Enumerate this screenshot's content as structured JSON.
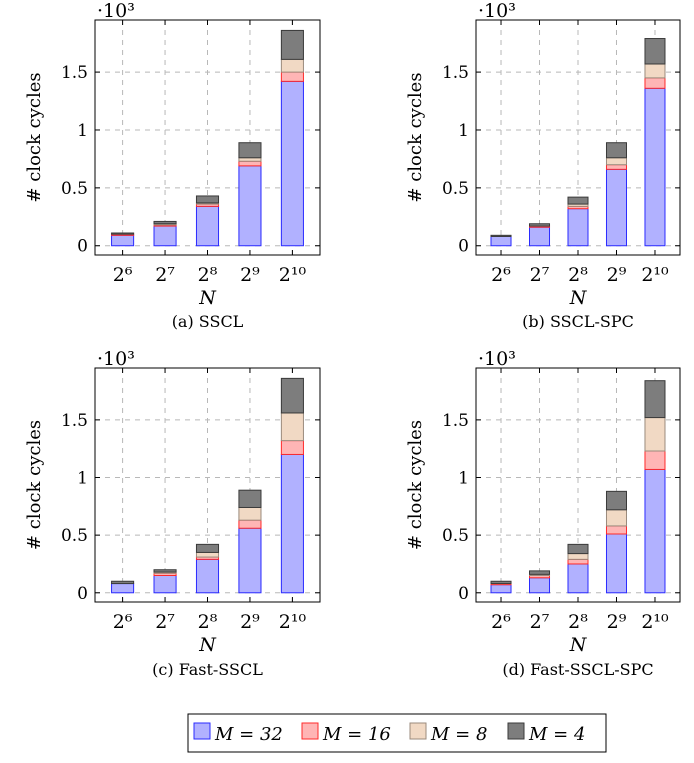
{
  "legend": {
    "items": [
      {
        "label": "M = 32",
        "color": "#b1b1ff",
        "stroke": "#2b2bff"
      },
      {
        "label": "M = 16",
        "color": "#ffb5b5",
        "stroke": "#ff2b2b"
      },
      {
        "label": "M = 8",
        "color": "#f1d9c4",
        "stroke": "#9b8b7d"
      },
      {
        "label": "M = 4",
        "color": "#7d7d7d",
        "stroke": "#3a3a3a"
      }
    ]
  },
  "chart_data": [
    {
      "type": "bar",
      "stacked": true,
      "caption": "(a) SSCL",
      "xlabel": "N",
      "ylabel": "# clock cycles",
      "scale_label": "·10³",
      "categories": [
        "2⁶",
        "2⁷",
        "2⁸",
        "2⁹",
        "2¹⁰"
      ],
      "ylim": [
        -0.08,
        1.95
      ],
      "yticks": [
        0,
        0.5,
        1,
        1.5
      ],
      "ytick_labels": [
        "0",
        "0.5",
        "1",
        "1.5"
      ],
      "grid": true,
      "series": [
        {
          "name": "M = 32",
          "values": [
            0.09,
            0.17,
            0.34,
            0.69,
            1.42
          ]
        },
        {
          "name": "M = 16",
          "values": [
            0.01,
            0.01,
            0.02,
            0.04,
            0.08
          ]
        },
        {
          "name": "M = 8",
          "values": [
            0.0,
            0.01,
            0.01,
            0.03,
            0.11
          ]
        },
        {
          "name": "M = 4",
          "values": [
            0.01,
            0.02,
            0.06,
            0.13,
            0.25
          ]
        }
      ]
    },
    {
      "type": "bar",
      "stacked": true,
      "caption": "(b) SSCL-SPC",
      "xlabel": "N",
      "ylabel": "# clock cycles",
      "scale_label": "·10³",
      "categories": [
        "2⁶",
        "2⁷",
        "2⁸",
        "2⁹",
        "2¹⁰"
      ],
      "ylim": [
        -0.08,
        1.95
      ],
      "yticks": [
        0,
        0.5,
        1,
        1.5
      ],
      "ytick_labels": [
        "0",
        "0.5",
        "1",
        "1.5"
      ],
      "grid": true,
      "series": [
        {
          "name": "M = 32",
          "values": [
            0.08,
            0.16,
            0.32,
            0.66,
            1.36
          ]
        },
        {
          "name": "M = 16",
          "values": [
            0.0,
            0.01,
            0.02,
            0.04,
            0.09
          ]
        },
        {
          "name": "M = 8",
          "values": [
            0.0,
            0.0,
            0.02,
            0.06,
            0.12
          ]
        },
        {
          "name": "M = 4",
          "values": [
            0.01,
            0.02,
            0.06,
            0.13,
            0.22
          ]
        }
      ]
    },
    {
      "type": "bar",
      "stacked": true,
      "caption": "(c) Fast-SSCL",
      "xlabel": "N",
      "ylabel": "# clock cycles",
      "scale_label": "·10³",
      "categories": [
        "2⁶",
        "2⁷",
        "2⁸",
        "2⁹",
        "2¹⁰"
      ],
      "ylim": [
        -0.08,
        1.95
      ],
      "yticks": [
        0,
        0.5,
        1,
        1.5
      ],
      "ytick_labels": [
        "0",
        "0.5",
        "1",
        "1.5"
      ],
      "grid": true,
      "series": [
        {
          "name": "M = 32",
          "values": [
            0.08,
            0.15,
            0.29,
            0.56,
            1.2
          ]
        },
        {
          "name": "M = 16",
          "values": [
            0.0,
            0.02,
            0.02,
            0.07,
            0.12
          ]
        },
        {
          "name": "M = 8",
          "values": [
            0.0,
            0.01,
            0.04,
            0.11,
            0.24
          ]
        },
        {
          "name": "M = 4",
          "values": [
            0.02,
            0.02,
            0.07,
            0.15,
            0.3
          ]
        }
      ]
    },
    {
      "type": "bar",
      "stacked": true,
      "caption": "(d) Fast-SSCL-SPC",
      "xlabel": "N",
      "ylabel": "# clock cycles",
      "scale_label": "·10³",
      "categories": [
        "2⁶",
        "2⁷",
        "2⁸",
        "2⁹",
        "2¹⁰"
      ],
      "ylim": [
        -0.08,
        1.95
      ],
      "yticks": [
        0,
        0.5,
        1,
        1.5
      ],
      "ytick_labels": [
        "0",
        "0.5",
        "1",
        "1.5"
      ],
      "grid": true,
      "series": [
        {
          "name": "M = 32",
          "values": [
            0.07,
            0.13,
            0.25,
            0.51,
            1.07
          ]
        },
        {
          "name": "M = 16",
          "values": [
            0.01,
            0.02,
            0.04,
            0.07,
            0.16
          ]
        },
        {
          "name": "M = 8",
          "values": [
            0.0,
            0.01,
            0.05,
            0.14,
            0.29
          ]
        },
        {
          "name": "M = 4",
          "values": [
            0.02,
            0.03,
            0.08,
            0.16,
            0.32
          ]
        }
      ]
    }
  ]
}
